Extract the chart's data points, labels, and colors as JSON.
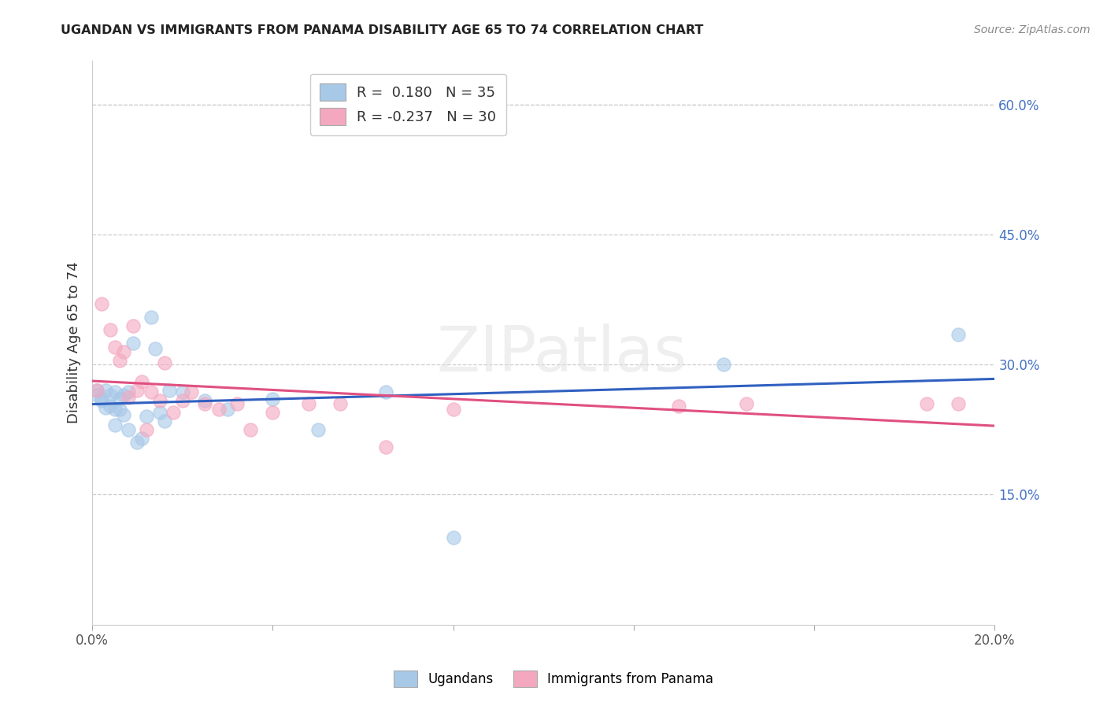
{
  "title": "UGANDAN VS IMMIGRANTS FROM PANAMA DISABILITY AGE 65 TO 74 CORRELATION CHART",
  "source": "Source: ZipAtlas.com",
  "ylabel": "Disability Age 65 to 74",
  "xlim": [
    0.0,
    0.2
  ],
  "ylim": [
    0.0,
    0.65
  ],
  "xticks": [
    0.0,
    0.04,
    0.08,
    0.12,
    0.16,
    0.2
  ],
  "xtick_labels": [
    "0.0%",
    "",
    "",
    "",
    "",
    "20.0%"
  ],
  "yticks_right": [
    0.15,
    0.3,
    0.45,
    0.6
  ],
  "ytick_labels_right": [
    "15.0%",
    "30.0%",
    "45.0%",
    "60.0%"
  ],
  "blue_color": "#a8c8e8",
  "pink_color": "#f4a8c0",
  "blue_line_color": "#3060c0",
  "pink_line_color": "#e05080",
  "watermark": "ZIPatlas",
  "background_color": "#ffffff",
  "grid_color": "#cccccc",
  "ugandan_x": [
    0.001,
    0.001,
    0.002,
    0.002,
    0.003,
    0.003,
    0.004,
    0.004,
    0.005,
    0.005,
    0.005,
    0.006,
    0.006,
    0.007,
    0.007,
    0.008,
    0.008,
    0.009,
    0.01,
    0.011,
    0.012,
    0.013,
    0.014,
    0.015,
    0.016,
    0.017,
    0.02,
    0.025,
    0.03,
    0.04,
    0.05,
    0.065,
    0.08,
    0.14,
    0.192
  ],
  "ugandan_y": [
    0.27,
    0.265,
    0.26,
    0.258,
    0.27,
    0.25,
    0.265,
    0.252,
    0.268,
    0.248,
    0.23,
    0.26,
    0.248,
    0.265,
    0.242,
    0.268,
    0.225,
    0.325,
    0.21,
    0.215,
    0.24,
    0.355,
    0.318,
    0.245,
    0.235,
    0.27,
    0.268,
    0.258,
    0.248,
    0.26,
    0.225,
    0.268,
    0.1,
    0.3,
    0.335
  ],
  "panama_x": [
    0.001,
    0.002,
    0.004,
    0.005,
    0.006,
    0.007,
    0.008,
    0.009,
    0.01,
    0.011,
    0.012,
    0.013,
    0.015,
    0.016,
    0.018,
    0.02,
    0.022,
    0.025,
    0.028,
    0.032,
    0.035,
    0.04,
    0.048,
    0.055,
    0.065,
    0.08,
    0.13,
    0.145,
    0.185,
    0.192
  ],
  "panama_y": [
    0.27,
    0.37,
    0.34,
    0.32,
    0.305,
    0.315,
    0.262,
    0.345,
    0.27,
    0.28,
    0.225,
    0.268,
    0.258,
    0.302,
    0.245,
    0.258,
    0.268,
    0.255,
    0.248,
    0.255,
    0.225,
    0.245,
    0.255,
    0.255,
    0.205,
    0.248,
    0.252,
    0.255,
    0.255,
    0.255
  ]
}
